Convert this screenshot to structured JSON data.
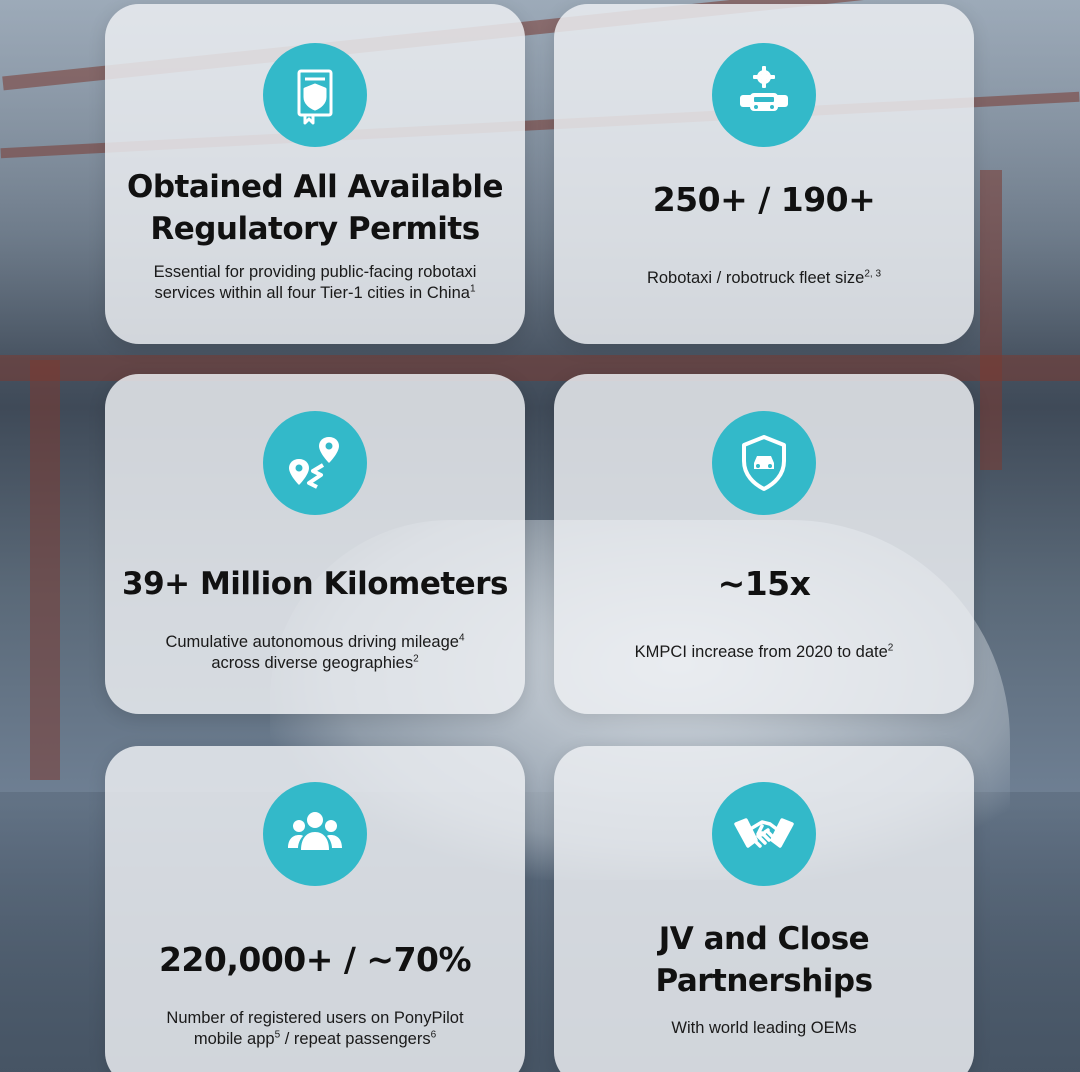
{
  "cards": [
    {
      "icon": "permit-book-icon",
      "headline": [
        "Obtained All Available",
        "Regulatory Permits"
      ],
      "sub": [
        {
          "text": "Essential for providing public-facing robotaxi",
          "sup": ""
        },
        {
          "text": "services within all four Tier-1 cities in China",
          "sup": "1"
        }
      ]
    },
    {
      "icon": "fleet-gear-icon",
      "headline": [
        "250+ / 190+"
      ],
      "sub": [
        {
          "text": "Robotaxi / robotruck fleet size",
          "sup": "2, 3"
        }
      ]
    },
    {
      "icon": "route-map-icon",
      "headline": [
        "39+ Million Kilometers"
      ],
      "sub": [
        {
          "text": "Cumulative autonomous driving mileage",
          "sup": "4"
        },
        {
          "text": "across diverse geographies",
          "sup": "2"
        }
      ]
    },
    {
      "icon": "safety-shield-icon",
      "headline": [
        "~15x"
      ],
      "sub": [
        {
          "text": "KMPCI increase from 2020 to date",
          "sup": "2"
        }
      ]
    },
    {
      "icon": "users-group-icon",
      "headline": [
        "220,000+ / ~70%"
      ],
      "sub": [
        {
          "text": "Number of registered users on PonyPilot",
          "sup": ""
        },
        {
          "text": "mobile app",
          "sup": "5",
          "text2": " / repeat passengers",
          "sup2": "6"
        }
      ]
    },
    {
      "icon": "handshake-icon",
      "headline": [
        "JV and Close",
        "Partnerships"
      ],
      "sub": [
        {
          "text": "With world leading OEMs",
          "sup": ""
        }
      ]
    }
  ],
  "colors": {
    "accent": "#33b9c9",
    "card_bg": "#eceef2",
    "text": "#111111"
  }
}
